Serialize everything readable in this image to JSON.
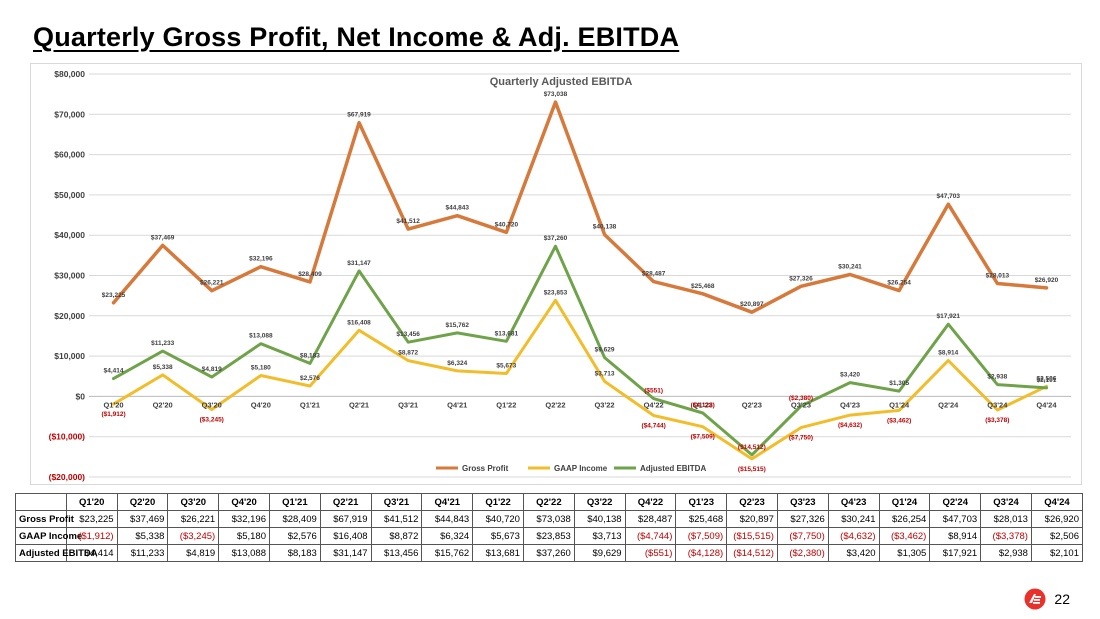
{
  "page": {
    "title": "Quarterly Gross Profit, Net Income & Adj. EBITDA",
    "page_number": "22"
  },
  "colors": {
    "gross_profit": "#d6793b",
    "gaap_income": "#f2bd2a",
    "adjusted_ebitda": "#6fa34a",
    "negative_text": "#c00000",
    "logo_red": "#e8312a"
  },
  "chart_data": {
    "type": "line",
    "title": "Quarterly  Adjusted EBITDA",
    "xlabel": "",
    "ylabel": "",
    "ylim": [
      -20000,
      80000
    ],
    "yticks": [
      80000,
      70000,
      60000,
      50000,
      40000,
      30000,
      20000,
      10000,
      0,
      -10000,
      -20000
    ],
    "ytick_labels": [
      "$80,000",
      "$70,000",
      "$60,000",
      "$50,000",
      "$40,000",
      "$30,000",
      "$20,000",
      "$10,000",
      "$0",
      "($10,000)",
      "($20,000)"
    ],
    "grid": true,
    "legend_position": "bottom",
    "categories": [
      "Q1'20",
      "Q2'20",
      "Q3'20",
      "Q4'20",
      "Q1'21",
      "Q2'21",
      "Q3'21",
      "Q4'21",
      "Q1'22",
      "Q2'22",
      "Q3'22",
      "Q4'22",
      "Q1'23",
      "Q2'23",
      "Q3'23",
      "Q4'23",
      "Q1'24",
      "Q2'24",
      "Q3'24",
      "Q4'24"
    ],
    "series": [
      {
        "name": "Gross Profit",
        "values": [
          23225,
          37469,
          26221,
          32196,
          28409,
          67919,
          41512,
          44843,
          40720,
          73038,
          40138,
          28487,
          25468,
          20897,
          27326,
          30241,
          26254,
          47703,
          28013,
          26920
        ],
        "labels": [
          "$23,225",
          "$37,469",
          "$26,221",
          "$32,196",
          "$28,409",
          "$67,919",
          "$41,512",
          "$44,843",
          "$40,720",
          "$73,038",
          "$40,138",
          "$28,487",
          "$25,468",
          "$20,897",
          "$27,326",
          "$30,241",
          "$26,254",
          "$47,703",
          "$28,013",
          "$26,920"
        ]
      },
      {
        "name": "GAAP Income",
        "values": [
          -1912,
          5338,
          -3245,
          5180,
          2576,
          16408,
          8872,
          6324,
          5673,
          23853,
          3713,
          -4744,
          -7509,
          -15515,
          -7750,
          -4632,
          -3462,
          8914,
          -3378,
          2506
        ],
        "labels": [
          "($1,912)",
          "$5,338",
          "($3,245)",
          "$5,180",
          "$2,576",
          "$16,408",
          "$8,872",
          "$6,324",
          "$5,673",
          "$23,853",
          "$3,713",
          "($4,744)",
          "($7,509)",
          "($15,515)",
          "($7,750)",
          "($4,632)",
          "($3,462)",
          "$8,914",
          "($3,378)",
          "$2,506"
        ]
      },
      {
        "name": "Adjusted EBITDA",
        "values": [
          4414,
          11233,
          4819,
          13088,
          8183,
          31147,
          13456,
          15762,
          13681,
          37260,
          9629,
          -551,
          -4128,
          -14512,
          -2380,
          3420,
          1305,
          17921,
          2938,
          2101
        ],
        "labels": [
          "$4,414",
          "$11,233",
          "$4,819",
          "$13,088",
          "$8,183",
          "$31,147",
          "$13,456",
          "$15,762",
          "$13,681",
          "$37,260",
          "$9,629",
          "($551)",
          "($4,128)",
          "($14,512)",
          "($2,380)",
          "$3,420",
          "$1,305",
          "$17,921",
          "$2,938",
          "$2,101"
        ]
      }
    ]
  },
  "table": {
    "headers": [
      "",
      "Q1'20",
      "Q2'20",
      "Q3'20",
      "Q4'20",
      "Q1'21",
      "Q2'21",
      "Q3'21",
      "Q4'21",
      "Q1'22",
      "Q2'22",
      "Q3'22",
      "Q4'22",
      "Q1'23",
      "Q2'23",
      "Q3'23",
      "Q4'23",
      "Q1'24",
      "Q2'24",
      "Q3'24",
      "Q4'24"
    ],
    "rows": [
      {
        "label": "Gross Profit",
        "cells": [
          "$23,225",
          "$37,469",
          "$26,221",
          "$32,196",
          "$28,409",
          "$67,919",
          "$41,512",
          "$44,843",
          "$40,720",
          "$73,038",
          "$40,138",
          "$28,487",
          "$25,468",
          "$20,897",
          "$27,326",
          "$30,241",
          "$26,254",
          "$47,703",
          "$28,013",
          "$26,920"
        ]
      },
      {
        "label": "GAAP Income",
        "cells": [
          "($1,912)",
          "$5,338",
          "($3,245)",
          "$5,180",
          "$2,576",
          "$16,408",
          "$8,872",
          "$6,324",
          "$5,673",
          "$23,853",
          "$3,713",
          "($4,744)",
          "($7,509)",
          "($15,515)",
          "($7,750)",
          "($4,632)",
          "($3,462)",
          "$8,914",
          "($3,378)",
          "$2,506"
        ]
      },
      {
        "label": "Adjusted EBITDA",
        "cells": [
          "$4,414",
          "$11,233",
          "$4,819",
          "$13,088",
          "$8,183",
          "$31,147",
          "$13,456",
          "$15,762",
          "$13,681",
          "$37,260",
          "$9,629",
          "($551)",
          "($4,128)",
          "($14,512)",
          "($2,380)",
          "$3,420",
          "$1,305",
          "$17,921",
          "$2,938",
          "$2,101"
        ]
      }
    ]
  }
}
